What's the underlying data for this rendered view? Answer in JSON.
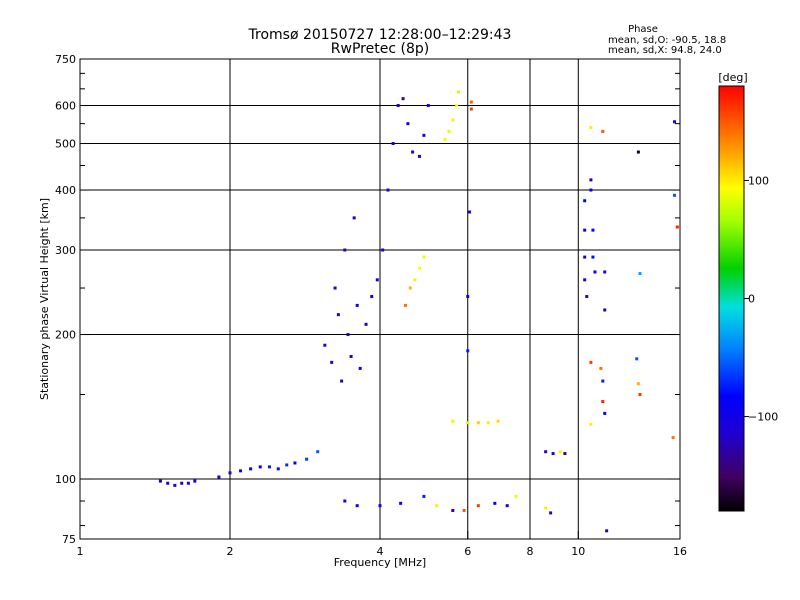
{
  "chart_data": {
    "type": "scatter",
    "title": "Tromsø 20150727 12:28:00–12:29:43",
    "subtitle": "RwPretec (8p)",
    "xlabel": "Frequency [MHz]",
    "ylabel": "Stationary phase Virtual Height [km]",
    "x_scale": "log",
    "y_scale": "log",
    "xlim": [
      1,
      16
    ],
    "ylim": [
      75,
      750
    ],
    "x_ticks": [
      1,
      2,
      4,
      6,
      8,
      10,
      16
    ],
    "x_tick_labels": [
      "1",
      "2",
      "4",
      "6",
      "8",
      "10",
      "16"
    ],
    "y_ticks": [
      75,
      100,
      200,
      300,
      400,
      500,
      600,
      750
    ],
    "y_tick_labels": [
      "75",
      "100",
      "200",
      "300",
      "400",
      "500",
      "600",
      "750"
    ],
    "y_minor_ticks": [
      80,
      90,
      150,
      250,
      350,
      450,
      550,
      650,
      700
    ],
    "grid": true,
    "stats": {
      "heading": "Phase",
      "line1": "mean, sd,O: -90.5, 18.8",
      "line2": "mean, sd,X:  94.8, 24.0"
    },
    "colorbar": {
      "label": "[deg]",
      "range": [
        -180,
        180
      ],
      "ticks": [
        100,
        0,
        -100
      ],
      "tick_labels": [
        "100",
        "0",
        "−100"
      ]
    },
    "series": [
      {
        "values": [
          {
            "x": 1.45,
            "y": 99,
            "phase": -120
          },
          {
            "x": 1.5,
            "y": 98,
            "phase": -115
          },
          {
            "x": 1.55,
            "y": 97,
            "phase": -110
          },
          {
            "x": 1.6,
            "y": 98,
            "phase": -118
          },
          {
            "x": 1.65,
            "y": 98,
            "phase": -112
          },
          {
            "x": 1.7,
            "y": 99,
            "phase": -105
          },
          {
            "x": 1.9,
            "y": 101,
            "phase": -110
          },
          {
            "x": 2.0,
            "y": 103,
            "phase": -120
          },
          {
            "x": 2.1,
            "y": 104,
            "phase": -100
          },
          {
            "x": 2.2,
            "y": 105,
            "phase": -90
          },
          {
            "x": 2.3,
            "y": 106,
            "phase": -95
          },
          {
            "x": 2.4,
            "y": 106,
            "phase": -80
          },
          {
            "x": 2.5,
            "y": 105,
            "phase": -85
          },
          {
            "x": 2.6,
            "y": 107,
            "phase": -75
          },
          {
            "x": 2.7,
            "y": 108,
            "phase": -90
          },
          {
            "x": 2.85,
            "y": 110,
            "phase": -70
          },
          {
            "x": 3.0,
            "y": 114,
            "phase": -60
          },
          {
            "x": 3.1,
            "y": 190,
            "phase": -115
          },
          {
            "x": 3.2,
            "y": 175,
            "phase": -120
          },
          {
            "x": 3.25,
            "y": 250,
            "phase": -118
          },
          {
            "x": 3.3,
            "y": 220,
            "phase": -110
          },
          {
            "x": 3.35,
            "y": 160,
            "phase": -122
          },
          {
            "x": 3.4,
            "y": 300,
            "phase": -115
          },
          {
            "x": 3.45,
            "y": 200,
            "phase": -112
          },
          {
            "x": 3.5,
            "y": 180,
            "phase": -120
          },
          {
            "x": 3.55,
            "y": 350,
            "phase": -115
          },
          {
            "x": 3.6,
            "y": 230,
            "phase": -100
          },
          {
            "x": 3.65,
            "y": 170,
            "phase": -118
          },
          {
            "x": 3.75,
            "y": 210,
            "phase": -105
          },
          {
            "x": 3.85,
            "y": 240,
            "phase": -100
          },
          {
            "x": 3.95,
            "y": 260,
            "phase": -108
          },
          {
            "x": 4.05,
            "y": 300,
            "phase": -110
          },
          {
            "x": 4.15,
            "y": 400,
            "phase": -115
          },
          {
            "x": 4.25,
            "y": 500,
            "phase": -112
          },
          {
            "x": 4.35,
            "y": 600,
            "phase": -118
          },
          {
            "x": 4.45,
            "y": 620,
            "phase": -120
          },
          {
            "x": 4.55,
            "y": 550,
            "phase": -110
          },
          {
            "x": 4.65,
            "y": 480,
            "phase": -115
          },
          {
            "x": 4.8,
            "y": 470,
            "phase": -118
          },
          {
            "x": 4.9,
            "y": 520,
            "phase": -112
          },
          {
            "x": 5.0,
            "y": 600,
            "phase": -110
          },
          {
            "x": 4.5,
            "y": 230,
            "phase": 140
          },
          {
            "x": 4.6,
            "y": 250,
            "phase": 120
          },
          {
            "x": 4.7,
            "y": 260,
            "phase": 100
          },
          {
            "x": 4.8,
            "y": 275,
            "phase": 95
          },
          {
            "x": 4.9,
            "y": 290,
            "phase": 90
          },
          {
            "x": 5.4,
            "y": 510,
            "phase": 90
          },
          {
            "x": 5.5,
            "y": 530,
            "phase": 85
          },
          {
            "x": 5.6,
            "y": 560,
            "phase": 100
          },
          {
            "x": 5.7,
            "y": 600,
            "phase": 95
          },
          {
            "x": 5.75,
            "y": 640,
            "phase": 80
          },
          {
            "x": 6.0,
            "y": 240,
            "phase": -105
          },
          {
            "x": 6.0,
            "y": 185,
            "phase": -80
          },
          {
            "x": 6.05,
            "y": 360,
            "phase": -110
          },
          {
            "x": 6.1,
            "y": 610,
            "phase": 150
          },
          {
            "x": 6.1,
            "y": 590,
            "phase": 160
          },
          {
            "x": 5.6,
            "y": 132,
            "phase": 100
          },
          {
            "x": 6.0,
            "y": 131,
            "phase": 80
          },
          {
            "x": 6.3,
            "y": 131,
            "phase": 110
          },
          {
            "x": 6.6,
            "y": 131,
            "phase": 100
          },
          {
            "x": 6.9,
            "y": 132,
            "phase": 105
          },
          {
            "x": 3.4,
            "y": 90,
            "phase": -110
          },
          {
            "x": 3.6,
            "y": 88,
            "phase": -100
          },
          {
            "x": 4.0,
            "y": 88,
            "phase": -105
          },
          {
            "x": 4.4,
            "y": 89,
            "phase": -100
          },
          {
            "x": 4.9,
            "y": 92,
            "phase": -80
          },
          {
            "x": 5.2,
            "y": 88,
            "phase": 100
          },
          {
            "x": 5.6,
            "y": 86,
            "phase": -110
          },
          {
            "x": 5.9,
            "y": 86,
            "phase": 150
          },
          {
            "x": 6.3,
            "y": 88,
            "phase": 160
          },
          {
            "x": 6.8,
            "y": 89,
            "phase": -100
          },
          {
            "x": 7.2,
            "y": 88,
            "phase": -110
          },
          {
            "x": 7.5,
            "y": 92,
            "phase": 90
          },
          {
            "x": 8.6,
            "y": 87,
            "phase": 100
          },
          {
            "x": 8.8,
            "y": 85,
            "phase": -120
          },
          {
            "x": 8.6,
            "y": 114,
            "phase": -120
          },
          {
            "x": 8.9,
            "y": 113,
            "phase": -100
          },
          {
            "x": 9.2,
            "y": 114,
            "phase": 90
          },
          {
            "x": 9.4,
            "y": 113,
            "phase": -150
          },
          {
            "x": 10.3,
            "y": 380,
            "phase": -90
          },
          {
            "x": 10.3,
            "y": 330,
            "phase": -100
          },
          {
            "x": 10.3,
            "y": 290,
            "phase": -110
          },
          {
            "x": 10.3,
            "y": 260,
            "phase": -120
          },
          {
            "x": 10.4,
            "y": 240,
            "phase": -115
          },
          {
            "x": 10.6,
            "y": 420,
            "phase": -120
          },
          {
            "x": 10.6,
            "y": 400,
            "phase": -100
          },
          {
            "x": 10.7,
            "y": 330,
            "phase": -90
          },
          {
            "x": 10.7,
            "y": 290,
            "phase": -85
          },
          {
            "x": 10.8,
            "y": 270,
            "phase": -100
          },
          {
            "x": 10.6,
            "y": 540,
            "phase": 100
          },
          {
            "x": 11.2,
            "y": 530,
            "phase": 150
          },
          {
            "x": 11.3,
            "y": 270,
            "phase": -110
          },
          {
            "x": 11.3,
            "y": 225,
            "phase": -130
          },
          {
            "x": 10.6,
            "y": 175,
            "phase": 160
          },
          {
            "x": 10.6,
            "y": 130,
            "phase": 100
          },
          {
            "x": 11.1,
            "y": 170,
            "phase": 140
          },
          {
            "x": 11.2,
            "y": 160,
            "phase": -80
          },
          {
            "x": 11.2,
            "y": 145,
            "phase": 170
          },
          {
            "x": 11.3,
            "y": 137,
            "phase": -110
          },
          {
            "x": 11.4,
            "y": 78,
            "phase": -120
          },
          {
            "x": 13.2,
            "y": 480,
            "phase": -170
          },
          {
            "x": 13.3,
            "y": 268,
            "phase": -30
          },
          {
            "x": 13.1,
            "y": 178,
            "phase": -60
          },
          {
            "x": 13.2,
            "y": 158,
            "phase": 120
          },
          {
            "x": 13.3,
            "y": 150,
            "phase": 160
          },
          {
            "x": 15.6,
            "y": 555,
            "phase": -100
          },
          {
            "x": 15.6,
            "y": 390,
            "phase": -60
          },
          {
            "x": 15.8,
            "y": 335,
            "phase": 170
          },
          {
            "x": 15.5,
            "y": 122,
            "phase": 140
          }
        ]
      }
    ]
  }
}
